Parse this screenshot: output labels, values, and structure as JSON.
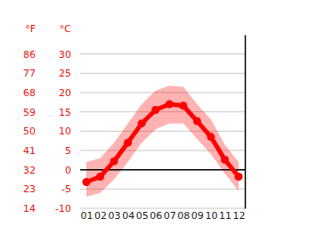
{
  "chart_data": {
    "type": "line",
    "categories": [
      "01",
      "02",
      "03",
      "04",
      "05",
      "06",
      "07",
      "08",
      "09",
      "10",
      "11",
      "12"
    ],
    "values": [
      -3.2,
      -1.8,
      2.2,
      7.0,
      12.0,
      15.5,
      17.0,
      16.6,
      12.6,
      8.5,
      2.6,
      -1.8
    ],
    "low": [
      -7.0,
      -6.0,
      -2.5,
      2.0,
      7.0,
      10.5,
      12.0,
      12.0,
      8.0,
      4.0,
      -1.0,
      -5.5
    ],
    "high": [
      2.0,
      3.0,
      7.0,
      12.0,
      17.0,
      20.5,
      21.8,
      21.5,
      17.0,
      13.0,
      6.5,
      2.0
    ],
    "color": "#ff0000",
    "marker": "circle",
    "y_label": "°C",
    "y2_label": "°F",
    "ylim": [
      -10,
      35
    ],
    "yticks": [
      -10,
      -5,
      0,
      5,
      10,
      15,
      20,
      25,
      30
    ],
    "y2lim": [
      14,
      95
    ],
    "y2ticks": [
      14,
      23,
      32,
      41,
      50,
      59,
      68,
      77,
      86
    ],
    "baseline": 0,
    "grid": true
  }
}
